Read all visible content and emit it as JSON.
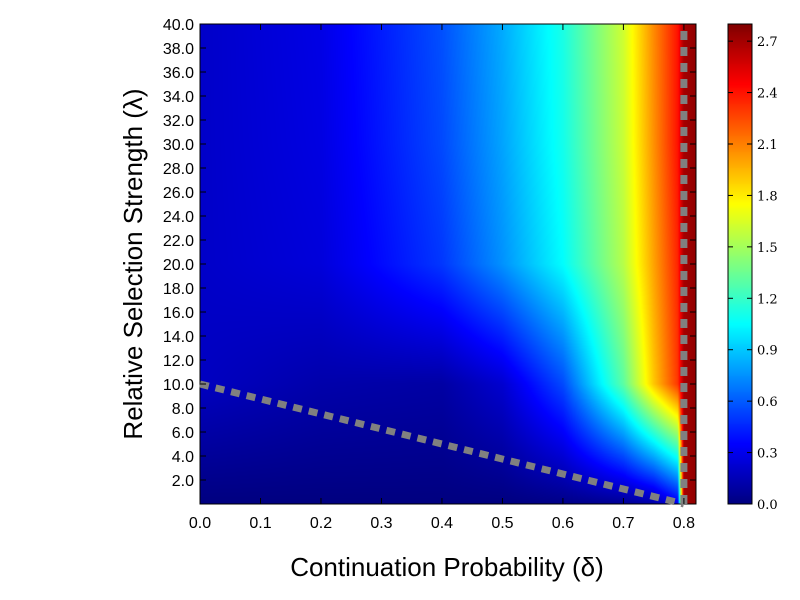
{
  "chart_data": {
    "type": "heatmap",
    "title": "",
    "xlabel": "Continuation Probability (δ)",
    "ylabel": "Relative Selection Strength (λ)",
    "xlim": [
      0.0,
      0.82
    ],
    "ylim": [
      0.0,
      40.0
    ],
    "x_ticks": [
      0.0,
      0.1,
      0.2,
      0.3,
      0.4,
      0.5,
      0.6,
      0.7,
      0.8
    ],
    "x_tick_labels": [
      "0.0",
      "0.1",
      "0.2",
      "0.3",
      "0.4",
      "0.5",
      "0.6",
      "0.7",
      "0.8"
    ],
    "y_ticks": [
      2,
      4,
      6,
      8,
      10,
      12,
      14,
      16,
      18,
      20,
      22,
      24,
      26,
      28,
      30,
      32,
      34,
      36,
      38,
      40
    ],
    "y_tick_labels": [
      "2.0",
      "4.0",
      "6.0",
      "8.0",
      "10.0",
      "12.0",
      "14.0",
      "16.0",
      "18.0",
      "20.0",
      "22.0",
      "24.0",
      "26.0",
      "28.0",
      "30.0",
      "32.0",
      "34.0",
      "36.0",
      "38.0",
      "40.0"
    ],
    "colormap": "jet",
    "colorbar": {
      "range": [
        0.0,
        2.8
      ],
      "ticks": [
        0.0,
        0.3,
        0.6,
        0.9,
        1.2,
        1.5,
        1.8,
        2.1,
        2.4,
        2.7
      ],
      "tick_labels": [
        "0.0",
        "0.3",
        "0.6",
        "0.9",
        "1.2",
        "1.5",
        "1.8",
        "2.1",
        "2.4",
        "2.7"
      ]
    },
    "boundary_lines": [
      {
        "style": "dashed",
        "color": "#808080",
        "points": [
          [
            0.0,
            10.0
          ],
          [
            0.8,
            0.0
          ]
        ]
      },
      {
        "style": "dashed",
        "color": "#808080",
        "points": [
          [
            0.8,
            0.0
          ],
          [
            0.8,
            40.0
          ]
        ]
      }
    ],
    "surface_samples": {
      "x": [
        0.0,
        0.2,
        0.4,
        0.5,
        0.6,
        0.7,
        0.75,
        0.79,
        0.8,
        0.82
      ],
      "y": [
        0,
        10,
        20,
        30,
        40
      ],
      "values": [
        [
          0.0,
          0.0,
          0.0,
          0.0,
          0.02,
          0.05,
          0.1,
          0.3,
          2.7,
          2.75
        ],
        [
          0.18,
          0.12,
          0.1,
          0.22,
          0.55,
          1.3,
          1.9,
          2.3,
          2.7,
          2.75
        ],
        [
          0.2,
          0.25,
          0.5,
          0.75,
          1.05,
          1.55,
          2.0,
          2.35,
          2.7,
          2.75
        ],
        [
          0.2,
          0.27,
          0.55,
          0.8,
          1.1,
          1.6,
          2.05,
          2.4,
          2.7,
          2.75
        ],
        [
          0.2,
          0.28,
          0.57,
          0.82,
          1.12,
          1.62,
          2.07,
          2.4,
          2.7,
          2.75
        ]
      ]
    }
  }
}
